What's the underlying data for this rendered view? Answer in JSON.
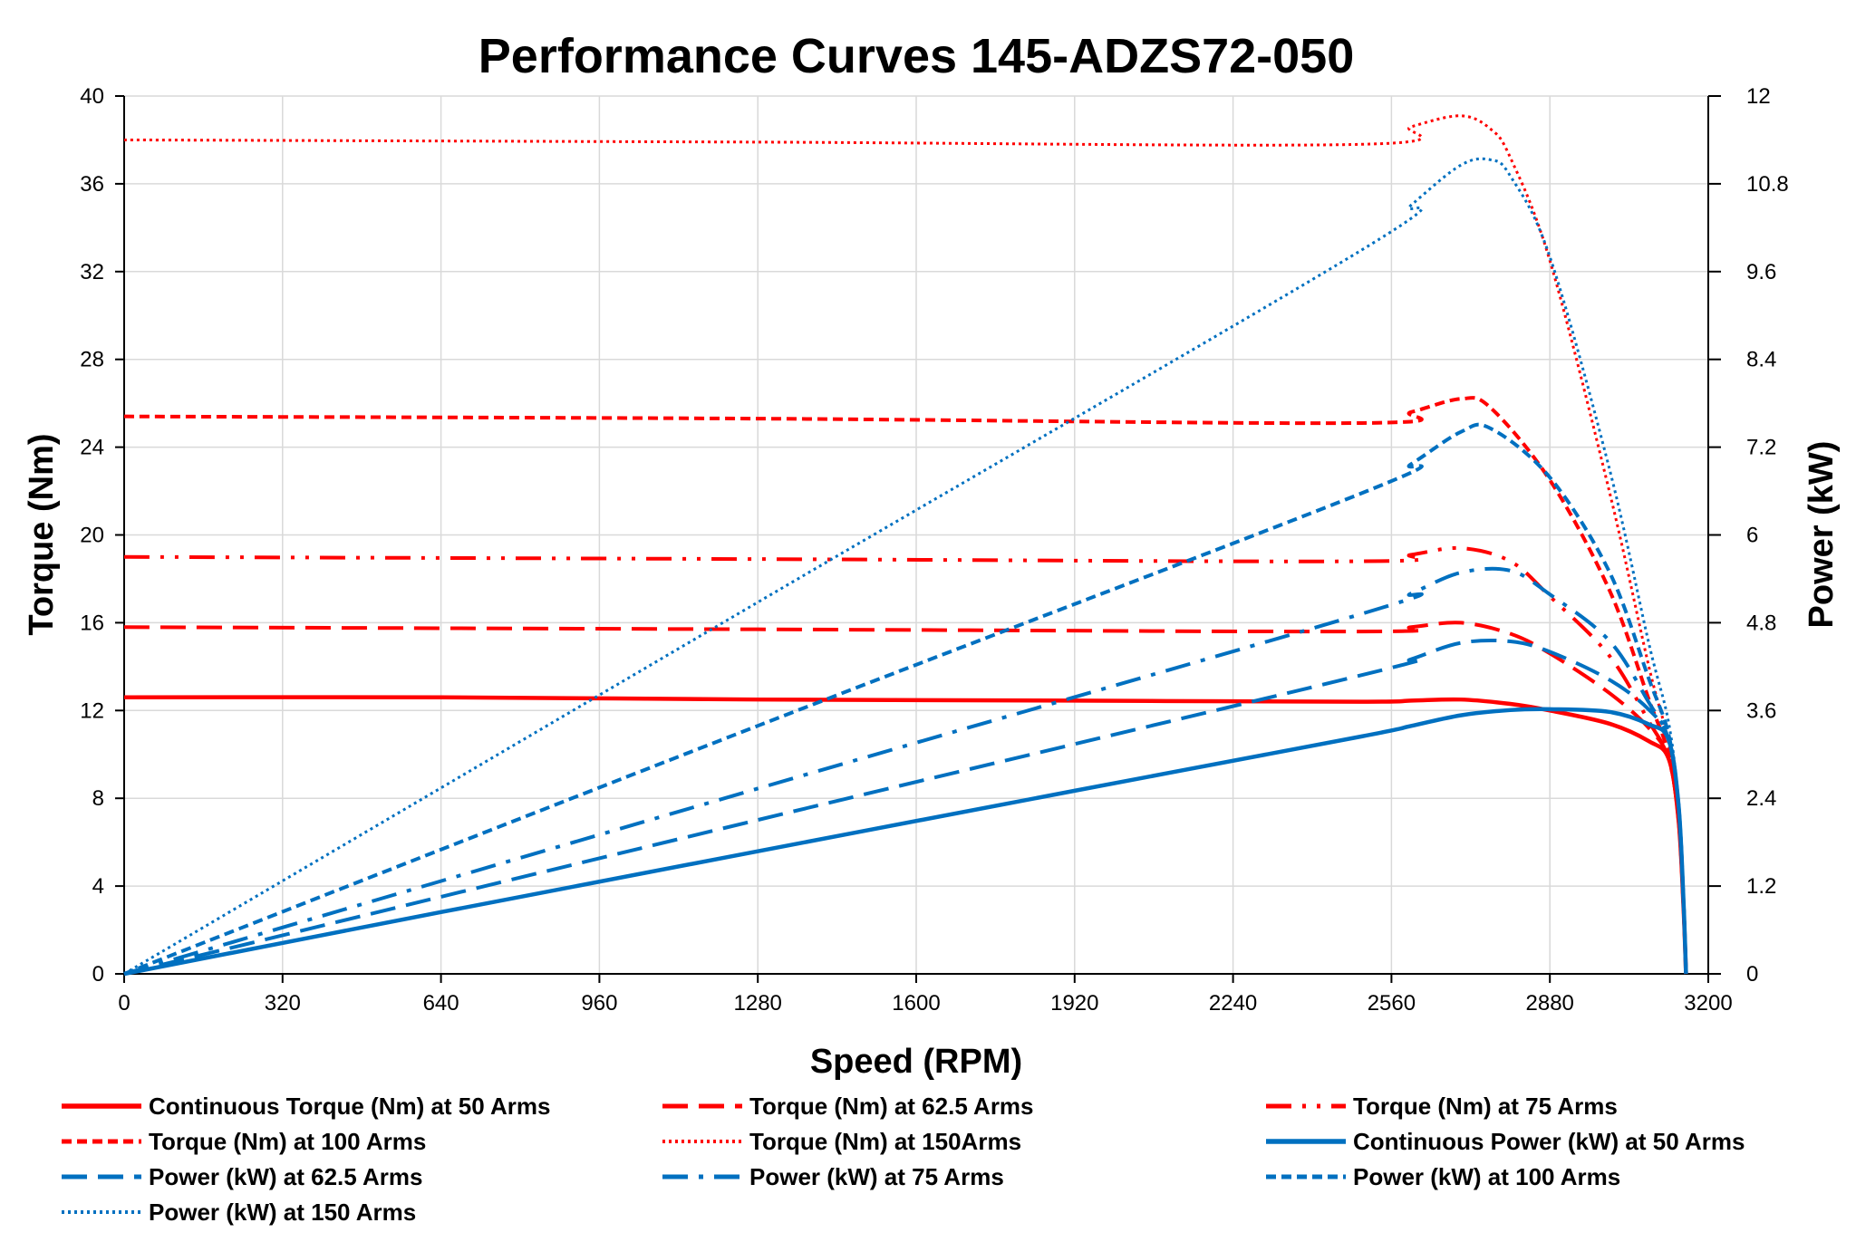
{
  "chart_data": {
    "type": "line",
    "title": "Performance Curves 145-ADZS72-050",
    "xlabel": "Speed (RPM)",
    "ylabel": "Torque (Nm)",
    "y2label": "Power (kW)",
    "xlim": [
      0,
      3200
    ],
    "ylim": [
      0,
      40
    ],
    "y2lim": [
      0,
      12
    ],
    "xticks": [
      "0",
      "320",
      "640",
      "960",
      "1280",
      "1600",
      "1920",
      "2240",
      "2560",
      "2880",
      "3200"
    ],
    "yticks": [
      "0",
      "4",
      "8",
      "12",
      "16",
      "20",
      "24",
      "28",
      "32",
      "36",
      "40"
    ],
    "y2ticks": [
      "0",
      "1.2",
      "2.4",
      "3.6",
      "4.8",
      "6",
      "7.2",
      "8.4",
      "9.6",
      "10.8",
      "12"
    ],
    "grid": true,
    "legend_placement": "bottom",
    "series": [
      {
        "name": "Continuous Torque (Nm) at 50 Arms",
        "axis": "left",
        "color": "#FF0000",
        "style": "solid",
        "points": [
          [
            0,
            12.6
          ],
          [
            640,
            12.6
          ],
          [
            1280,
            12.5
          ],
          [
            1920,
            12.45
          ],
          [
            2500,
            12.4
          ],
          [
            2600,
            12.45
          ],
          [
            2700,
            12.5
          ],
          [
            2800,
            12.3
          ],
          [
            2880,
            12.0
          ],
          [
            3000,
            11.4
          ],
          [
            3080,
            10.6
          ],
          [
            3120,
            9.8
          ],
          [
            3140,
            7
          ],
          [
            3150,
            3
          ],
          [
            3155,
            0
          ]
        ]
      },
      {
        "name": "Torque (Nm) at 62.5 Arms",
        "axis": "left",
        "color": "#FF0000",
        "style": "long-dash",
        "points": [
          [
            0,
            15.8
          ],
          [
            1280,
            15.7
          ],
          [
            2500,
            15.6
          ],
          [
            2600,
            15.8
          ],
          [
            2700,
            16.0
          ],
          [
            2800,
            15.5
          ],
          [
            2880,
            14.6
          ],
          [
            3000,
            12.8
          ],
          [
            3080,
            11.2
          ],
          [
            3120,
            9.8
          ],
          [
            3140,
            7
          ],
          [
            3150,
            3
          ],
          [
            3155,
            0
          ]
        ]
      },
      {
        "name": "Torque (Nm) at 75 Arms",
        "axis": "left",
        "color": "#FF0000",
        "style": "long-dash-dot-dot",
        "points": [
          [
            0,
            19.0
          ],
          [
            1280,
            18.9
          ],
          [
            2500,
            18.8
          ],
          [
            2600,
            19.1
          ],
          [
            2700,
            19.4
          ],
          [
            2800,
            18.8
          ],
          [
            2880,
            17.2
          ],
          [
            3000,
            14.5
          ],
          [
            3080,
            11.5
          ],
          [
            3120,
            9.8
          ],
          [
            3140,
            7
          ],
          [
            3150,
            3
          ],
          [
            3155,
            0
          ]
        ]
      },
      {
        "name": "Torque (Nm) at 100 Arms",
        "axis": "left",
        "color": "#FF0000",
        "style": "short-dash",
        "points": [
          [
            0,
            25.4
          ],
          [
            1280,
            25.3
          ],
          [
            2500,
            25.1
          ],
          [
            2600,
            25.6
          ],
          [
            2700,
            26.2
          ],
          [
            2760,
            25.8
          ],
          [
            2880,
            22.5
          ],
          [
            3000,
            17.5
          ],
          [
            3080,
            12.5
          ],
          [
            3120,
            10
          ],
          [
            3140,
            7
          ],
          [
            3150,
            3
          ],
          [
            3155,
            0
          ]
        ]
      },
      {
        "name": "Torque (Nm) at 150Arms",
        "axis": "left",
        "color": "#FF0000",
        "style": "dotted",
        "points": [
          [
            0,
            38.0
          ],
          [
            1280,
            37.9
          ],
          [
            2500,
            37.8
          ],
          [
            2600,
            38.6
          ],
          [
            2700,
            39.1
          ],
          [
            2760,
            38.5
          ],
          [
            2800,
            37.2
          ],
          [
            2880,
            32.5
          ],
          [
            3000,
            22
          ],
          [
            3080,
            14
          ],
          [
            3120,
            10.5
          ],
          [
            3140,
            7
          ],
          [
            3150,
            3
          ],
          [
            3155,
            0
          ]
        ]
      },
      {
        "name": "Continuous Power (kW) at 50 Arms",
        "axis": "right",
        "color": "#0070C0",
        "style": "solid",
        "points": [
          [
            0,
            0
          ],
          [
            640,
            0.844
          ],
          [
            1280,
            1.676
          ],
          [
            1920,
            2.503
          ],
          [
            2500,
            3.246
          ],
          [
            2600,
            3.389
          ],
          [
            2700,
            3.534
          ],
          [
            2800,
            3.606
          ],
          [
            2880,
            3.618
          ],
          [
            3000,
            3.581
          ],
          [
            3080,
            3.411
          ],
          [
            3120,
            3.197
          ],
          [
            3140,
            2.302
          ],
          [
            3150,
            0.99
          ],
          [
            3155,
            0
          ]
        ]
      },
      {
        "name": "Power (kW) at 62.5 Arms",
        "axis": "right",
        "color": "#0070C0",
        "style": "long-dash",
        "points": [
          [
            0,
            0
          ],
          [
            1280,
            2.104
          ],
          [
            2500,
            4.084
          ],
          [
            2600,
            4.302
          ],
          [
            2700,
            4.524
          ],
          [
            2800,
            4.545
          ],
          [
            2880,
            4.403
          ],
          [
            3000,
            4.021
          ],
          [
            3080,
            3.612
          ],
          [
            3120,
            3.202
          ],
          [
            3140,
            2.302
          ],
          [
            3150,
            0.99
          ],
          [
            3155,
            0
          ]
        ]
      },
      {
        "name": "Power (kW) at 75 Arms",
        "axis": "right",
        "color": "#0070C0",
        "style": "dash-dot",
        "points": [
          [
            0,
            0
          ],
          [
            1280,
            2.533
          ],
          [
            2500,
            4.922
          ],
          [
            2600,
            5.2
          ],
          [
            2700,
            5.485
          ],
          [
            2800,
            5.512
          ],
          [
            2880,
            5.187
          ],
          [
            3000,
            4.555
          ],
          [
            3080,
            3.709
          ],
          [
            3120,
            3.202
          ],
          [
            3140,
            2.302
          ],
          [
            3150,
            0.99
          ],
          [
            3155,
            0
          ]
        ]
      },
      {
        "name": "Power (kW) at 100 Arms",
        "axis": "right",
        "color": "#0070C0",
        "style": "short-dash",
        "points": [
          [
            0,
            0
          ],
          [
            1280,
            3.391
          ],
          [
            2500,
            6.571
          ],
          [
            2600,
            6.97
          ],
          [
            2700,
            7.408
          ],
          [
            2760,
            7.457
          ],
          [
            2880,
            6.786
          ],
          [
            3000,
            5.498
          ],
          [
            3080,
            4.032
          ],
          [
            3120,
            3.267
          ],
          [
            3140,
            2.302
          ],
          [
            3150,
            0.99
          ],
          [
            3155,
            0
          ]
        ]
      },
      {
        "name": "Power (kW) at 150 Arms",
        "axis": "right",
        "color": "#0070C0",
        "style": "dotted",
        "points": [
          [
            0,
            0
          ],
          [
            1280,
            5.08
          ],
          [
            2500,
            9.896
          ],
          [
            2600,
            10.51
          ],
          [
            2700,
            11.055
          ],
          [
            2760,
            11.128
          ],
          [
            2800,
            10.908
          ],
          [
            2880,
            9.802
          ],
          [
            3000,
            6.912
          ],
          [
            3080,
            4.516
          ],
          [
            3120,
            3.431
          ],
          [
            3140,
            2.302
          ],
          [
            3150,
            0.99
          ],
          [
            3155,
            0
          ]
        ]
      }
    ]
  }
}
